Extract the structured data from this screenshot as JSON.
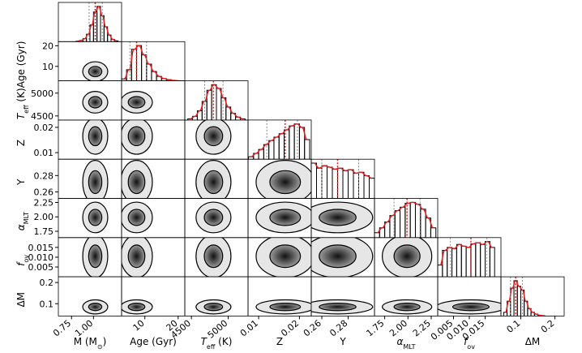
{
  "chart_data": {
    "type": "corner",
    "hist_color": "#000000",
    "fit_color": "#e41a1c",
    "median_color": "#e41a1c",
    "contour_color": "#000000",
    "variables": [
      {
        "label": [
          "M (M",
          "⊙",
          ")"
        ],
        "lim": [
          0.6,
          1.32
        ],
        "ticks": [
          0.75,
          {
            "value": 1,
            "label": "1.00"
          }
        ],
        "bins": [
          0.8,
          0.84,
          0.88,
          0.92,
          0.96,
          1.0,
          1.04,
          1.08,
          1.12,
          1.16,
          1.2,
          1.24,
          1.28
        ],
        "counts": [
          1,
          3,
          8,
          20,
          45,
          80,
          95,
          70,
          40,
          18,
          6,
          2
        ],
        "quantiles": [
          0.95,
          1.02,
          1.1
        ]
      },
      {
        "label": [
          "Age (Gyr)"
        ],
        "lim": [
          3,
          22
        ],
        "ticks": [
          10,
          20
        ],
        "bins": [
          3,
          4.5,
          6,
          7.5,
          9,
          10.5,
          12,
          13.5,
          15,
          16.5,
          18,
          19.5,
          21
        ],
        "counts": [
          5,
          30,
          85,
          95,
          70,
          45,
          25,
          12,
          6,
          3,
          1,
          0
        ],
        "quantiles": [
          5.5,
          7.5,
          10.5
        ]
      },
      {
        "label": [
          "T",
          "eff",
          " (K)"
        ],
        "lim": [
          4410,
          5270
        ],
        "ticks": [
          4500,
          5000
        ],
        "bins": [
          4450,
          4515,
          4580,
          4645,
          4710,
          4775,
          4840,
          4905,
          4970,
          5035,
          5100,
          5165,
          5230
        ],
        "counts": [
          3,
          10,
          25,
          50,
          80,
          95,
          85,
          60,
          35,
          18,
          8,
          3
        ],
        "quantiles": [
          4680,
          4800,
          4930
        ]
      },
      {
        "label": [
          "Z"
        ],
        "lim": [
          0.0074,
          0.0229
        ],
        "ticks": [
          0.01,
          0.02
        ],
        "bins": [
          0.0075,
          0.00875,
          0.01,
          0.01125,
          0.0125,
          0.01375,
          0.015,
          0.01625,
          0.0175,
          0.01875,
          0.02,
          0.02125,
          0.0225
        ],
        "counts": [
          5,
          12,
          20,
          30,
          38,
          45,
          52,
          60,
          68,
          72,
          65,
          40
        ],
        "quantiles": [
          0.012,
          0.0165,
          0.0195
        ]
      },
      {
        "label": [
          "Y"
        ],
        "lim": [
          0.252,
          0.3
        ],
        "ticks": [
          0.26,
          0.28
        ],
        "bins": [
          0.252,
          0.256,
          0.26,
          0.264,
          0.268,
          0.272,
          0.276,
          0.28,
          0.284,
          0.288,
          0.292,
          0.296,
          0.3
        ],
        "counts": [
          70,
          60,
          65,
          62,
          58,
          60,
          55,
          57,
          50,
          52,
          45,
          40
        ],
        "quantiles": [
          0.26,
          0.272,
          0.288
        ]
      },
      {
        "label": [
          "α",
          "MLT"
        ],
        "lim": [
          1.64,
          2.32
        ],
        "ticks": [
          1.75,
          {
            "value": 2,
            "label": "2.00"
          },
          2.25
        ],
        "bins": [
          1.64,
          1.695,
          1.75,
          1.805,
          1.86,
          1.915,
          1.97,
          2.025,
          2.08,
          2.135,
          2.19,
          2.245,
          2.3
        ],
        "counts": [
          10,
          20,
          32,
          45,
          55,
          62,
          70,
          72,
          68,
          58,
          40,
          20
        ],
        "quantiles": [
          1.85,
          1.99,
          2.13
        ]
      },
      {
        "label": [
          "f",
          "ov"
        ],
        "lim": [
          0,
          0.02
        ],
        "ticks": [
          0.005,
          {
            "value": 0.01,
            "label": "0.010"
          },
          0.015
        ],
        "bins": [
          0,
          0.0015,
          0.003,
          0.0045,
          0.006,
          0.0075,
          0.009,
          0.0105,
          0.012,
          0.0135,
          0.015,
          0.0165,
          0.018
        ],
        "counts": [
          20,
          45,
          50,
          48,
          55,
          52,
          50,
          56,
          58,
          55,
          60,
          50
        ],
        "quantiles": [
          0.004,
          0.0105,
          0.0155
        ]
      },
      {
        "label": [
          "ΔM"
        ],
        "lim": [
          0.042,
          0.227
        ],
        "ticks": [
          0.1,
          0.2
        ],
        "bins": [
          0.05,
          0.06,
          0.07,
          0.08,
          0.09,
          0.1,
          0.11,
          0.12,
          0.13,
          0.14,
          0.15,
          0.16,
          0.17
        ],
        "counts": [
          10,
          40,
          75,
          95,
          80,
          70,
          40,
          20,
          10,
          5,
          2,
          1
        ],
        "quantiles": [
          0.07,
          0.085,
          0.105
        ]
      }
    ]
  }
}
